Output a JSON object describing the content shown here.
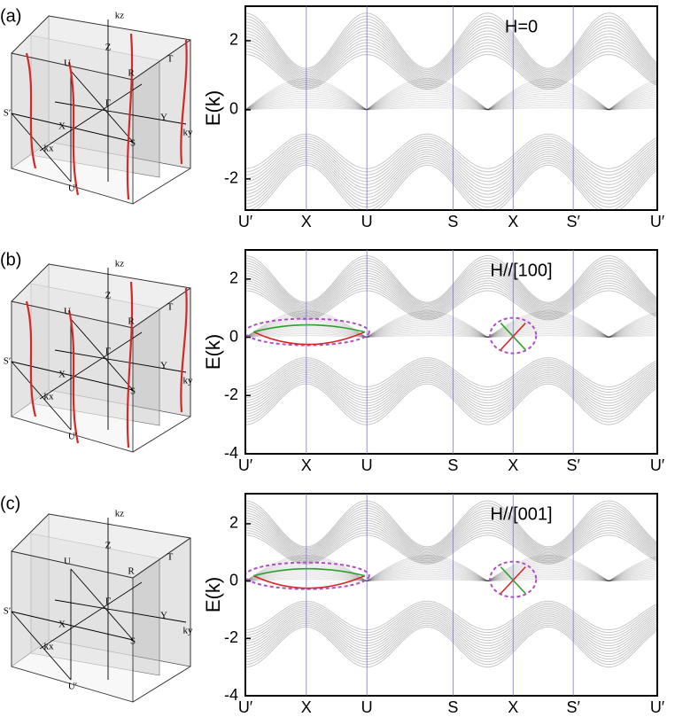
{
  "chart_data": [
    {
      "type": "band",
      "panel_label": "(a)",
      "ylabel": "E(k)",
      "annotation": "H=0",
      "categories": [
        "U′",
        "X",
        "U",
        "S",
        "X",
        "S′",
        "U′"
      ],
      "ylim": [
        -2.9,
        3.0
      ],
      "yticks": [
        -2,
        0,
        2
      ],
      "bz_labels": [
        "kz",
        "Z",
        "T",
        "U",
        "R",
        "Γ",
        "S′",
        "Y",
        "ky",
        "X",
        "kx",
        "S",
        "U′"
      ],
      "nodal_lines": true,
      "surface_arcs": false
    },
    {
      "type": "band",
      "panel_label": "(b)",
      "ylabel": "E(k)",
      "annotation": "H//[100]",
      "categories": [
        "U′",
        "X",
        "U",
        "S",
        "X",
        "S′",
        "U′"
      ],
      "ylim": [
        -4,
        3.0
      ],
      "yticks": [
        -4,
        -2,
        0,
        2
      ],
      "bz_labels": [
        "kz",
        "Z",
        "T",
        "U",
        "R",
        "Γ",
        "S′",
        "Y",
        "ky",
        "X",
        "kx",
        "S",
        "U′"
      ],
      "nodal_lines": true,
      "surface_arcs": true
    },
    {
      "type": "band",
      "panel_label": "(c)",
      "ylabel": "E(k)",
      "annotation": "H//[001]",
      "categories": [
        "U′",
        "X",
        "U",
        "S",
        "X",
        "S′",
        "U′"
      ],
      "ylim": [
        -4,
        3.05
      ],
      "yticks": [
        -4,
        -2,
        0,
        2
      ],
      "bz_labels": [
        "kz",
        "Z",
        "T",
        "U",
        "R",
        "Γ",
        "S′",
        "Y",
        "ky",
        "X",
        "kx",
        "S",
        "U′"
      ],
      "nodal_lines": false,
      "surface_arcs": true
    }
  ]
}
